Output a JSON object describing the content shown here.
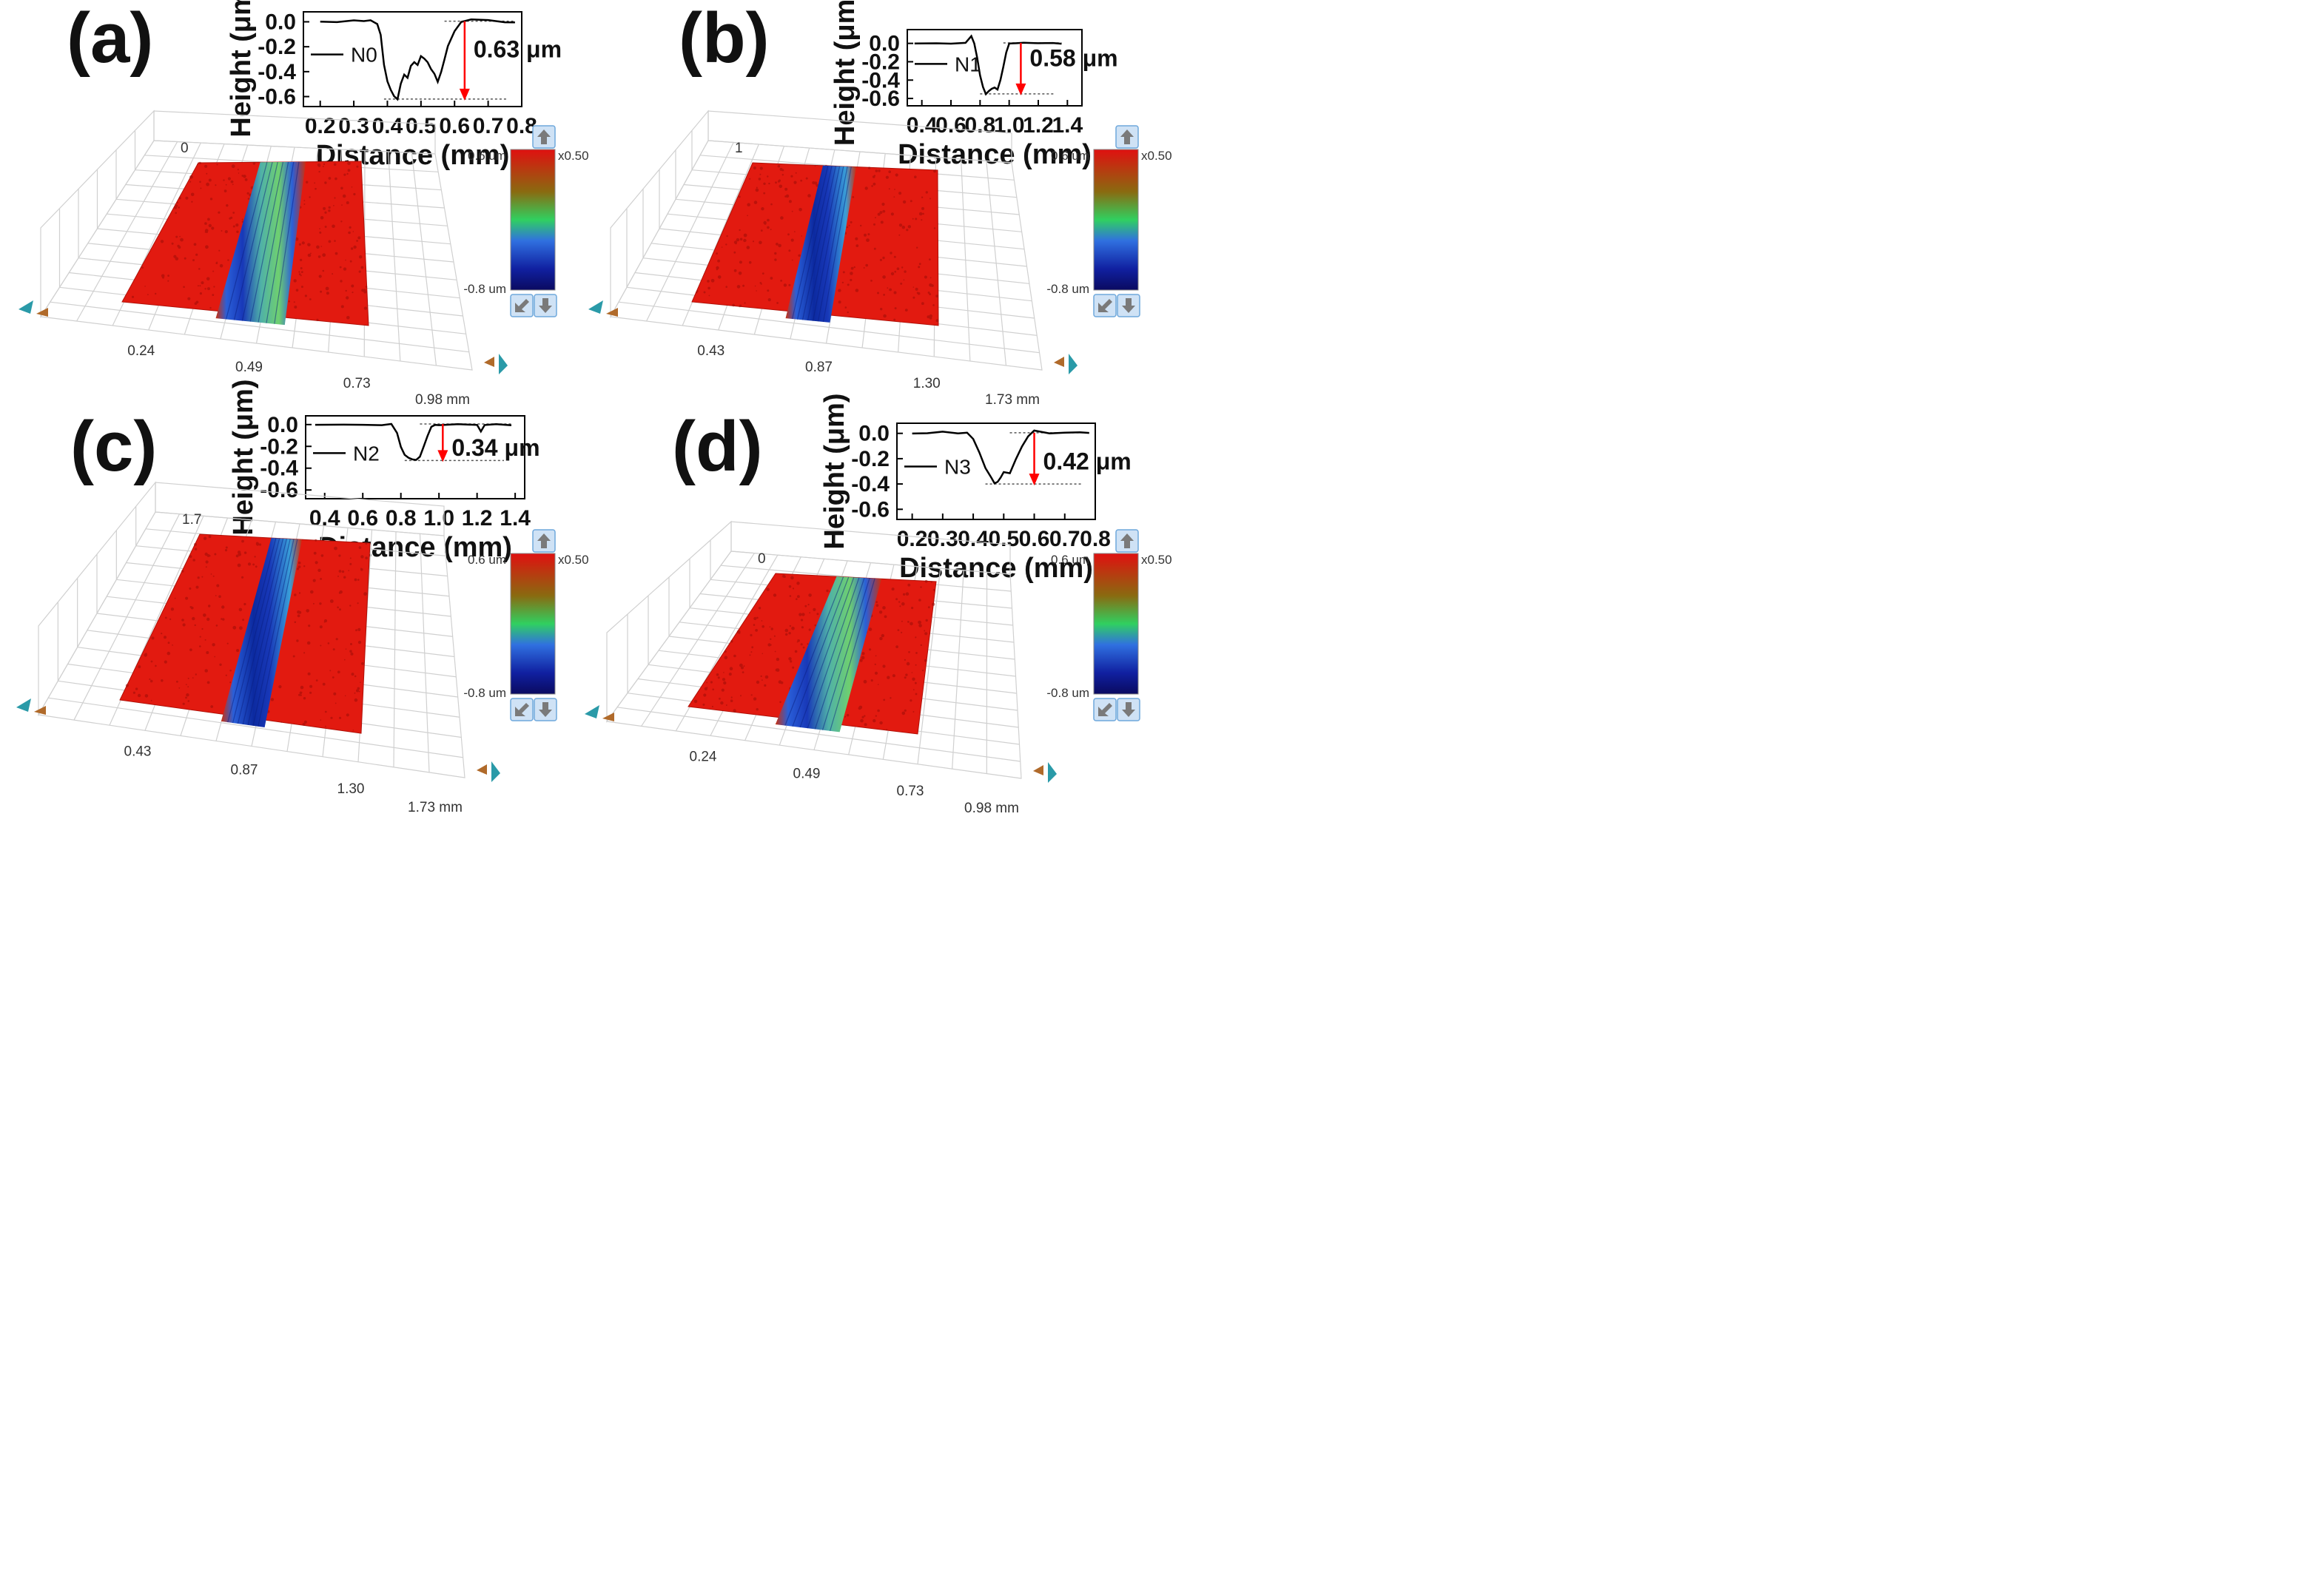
{
  "colors": {
    "trace": "#000000",
    "arrow": "#ff0000",
    "surface": "#e21a10",
    "groove": "#1a3fd0",
    "grid": "#d0d0d0",
    "button_bg": "#cfe2f5",
    "button_border": "#6fa8dc",
    "button_icon": "#7a7a7a"
  },
  "colorbar": {
    "top_label": "0.6 um",
    "bottom_label": "-0.8 um",
    "scale_label": "x0.50",
    "up_button_icon": "up-arrow-icon",
    "reset_button_icon": "reset-view-icon",
    "down_button_icon": "down-arrow-icon"
  },
  "chart_data": [
    {
      "panel": "(a)",
      "type": "line",
      "xlabel": "Distance (mm)",
      "ylabel": "Height (μm)",
      "xlim": [
        0.15,
        0.8
      ],
      "ylim": [
        -0.68,
        0.08
      ],
      "xticks": [
        "0.2",
        "0.3",
        "0.4",
        "0.5",
        "0.6",
        "0.7",
        "0.8"
      ],
      "yticks": [
        "0.0",
        "-0.2",
        "-0.4",
        "-0.6"
      ],
      "ytick_values": [
        0.0,
        -0.2,
        -0.4,
        -0.6
      ],
      "legend": "N0",
      "depth_label": "0.63 μm",
      "depth_at_x": 0.63,
      "series": [
        {
          "name": "N0",
          "x": [
            0.2,
            0.25,
            0.3,
            0.33,
            0.35,
            0.37,
            0.38,
            0.39,
            0.4,
            0.41,
            0.42,
            0.43,
            0.44,
            0.45,
            0.46,
            0.47,
            0.48,
            0.49,
            0.5,
            0.51,
            0.52,
            0.53,
            0.54,
            0.55,
            0.56,
            0.57,
            0.58,
            0.6,
            0.62,
            0.65,
            0.7,
            0.75,
            0.78
          ],
          "y": [
            0.0,
            0.0,
            0.01,
            0.0,
            0.01,
            -0.02,
            -0.1,
            -0.35,
            -0.48,
            -0.55,
            -0.6,
            -0.62,
            -0.5,
            -0.42,
            -0.45,
            -0.35,
            -0.32,
            -0.35,
            -0.28,
            -0.3,
            -0.32,
            -0.38,
            -0.42,
            -0.48,
            -0.4,
            -0.3,
            -0.2,
            -0.08,
            0.0,
            0.02,
            0.01,
            0.0,
            0.0
          ]
        }
      ],
      "surface3d": {
        "x_ticks": [
          "0.24",
          "0.49",
          "0.73",
          "0.98 mm"
        ],
        "z_label": "0",
        "groove_style": "wide"
      }
    },
    {
      "panel": "(b)",
      "type": "line",
      "xlabel": "Distance (mm)",
      "ylabel": "Height (μm)",
      "xlim": [
        0.3,
        1.5
      ],
      "ylim": [
        -0.68,
        0.15
      ],
      "xticks": [
        "0.4",
        "0.6",
        "0.8",
        "1.0",
        "1.2",
        "1.4"
      ],
      "yticks": [
        "0.0",
        "-0.2",
        "-0.4",
        "-0.6"
      ],
      "ytick_values": [
        0.0,
        -0.2,
        -0.4,
        -0.6
      ],
      "legend": "N1",
      "depth_label": "0.58 μm",
      "depth_at_x": 1.08,
      "series": [
        {
          "name": "N1",
          "x": [
            0.35,
            0.5,
            0.6,
            0.7,
            0.74,
            0.76,
            0.78,
            0.8,
            0.82,
            0.84,
            0.86,
            0.88,
            0.9,
            0.92,
            0.94,
            0.96,
            0.98,
            1.0,
            1.05,
            1.1,
            1.2,
            1.3,
            1.36
          ],
          "y": [
            0.0,
            0.0,
            0.0,
            0.01,
            0.08,
            0.0,
            -0.15,
            -0.35,
            -0.48,
            -0.55,
            -0.52,
            -0.5,
            -0.48,
            -0.5,
            -0.4,
            -0.25,
            -0.1,
            0.0,
            0.0,
            0.01,
            0.0,
            0.0,
            0.0
          ]
        }
      ],
      "surface3d": {
        "x_ticks": [
          "0.43",
          "0.87",
          "1.30",
          "1.73 mm"
        ],
        "z_label": "1",
        "groove_style": "narrow"
      }
    },
    {
      "panel": "(c)",
      "type": "line",
      "xlabel": "Distance (mm)",
      "ylabel": "Height (μm)",
      "xlim": [
        0.3,
        1.45
      ],
      "ylim": [
        -0.68,
        0.08
      ],
      "xticks": [
        "0.4",
        "0.6",
        "0.8",
        "1.0",
        "1.2",
        "1.4"
      ],
      "yticks": [
        "0.0",
        "-0.2",
        "-0.4",
        "-0.6"
      ],
      "ytick_values": [
        0.0,
        -0.2,
        -0.4,
        -0.6
      ],
      "legend": "N2",
      "depth_label": "0.34 μm",
      "depth_at_x": 1.02,
      "series": [
        {
          "name": "N2",
          "x": [
            0.35,
            0.5,
            0.6,
            0.7,
            0.75,
            0.78,
            0.8,
            0.82,
            0.84,
            0.86,
            0.88,
            0.9,
            0.92,
            0.94,
            0.96,
            0.98,
            1.0,
            1.1,
            1.2,
            1.22,
            1.24,
            1.3,
            1.38
          ],
          "y": [
            0.0,
            0.0,
            0.0,
            0.0,
            0.0,
            -0.08,
            -0.2,
            -0.28,
            -0.3,
            -0.32,
            -0.33,
            -0.3,
            -0.2,
            -0.1,
            -0.02,
            0.0,
            0.0,
            0.0,
            0.0,
            -0.06,
            0.0,
            0.0,
            -0.01
          ]
        }
      ],
      "surface3d": {
        "x_ticks": [
          "0.43",
          "0.87",
          "1.30",
          "1.73 mm"
        ],
        "z_label": "1.7",
        "groove_style": "medium"
      }
    },
    {
      "panel": "(d)",
      "type": "line",
      "xlabel": "Distance (mm)",
      "ylabel": "Height (μm)",
      "xlim": [
        0.15,
        0.8
      ],
      "ylim": [
        -0.68,
        0.08
      ],
      "xticks": [
        "0.2",
        "0.3",
        "0.4",
        "0.5",
        "0.6",
        "0.7",
        "0.8"
      ],
      "yticks": [
        "0.0",
        "-0.2",
        "-0.4",
        "-0.6"
      ],
      "ytick_values": [
        0.0,
        -0.2,
        -0.4,
        -0.6
      ],
      "legend": "N3",
      "depth_label": "0.42 μm",
      "depth_at_x": 0.6,
      "series": [
        {
          "name": "N3",
          "x": [
            0.2,
            0.25,
            0.3,
            0.35,
            0.38,
            0.4,
            0.42,
            0.44,
            0.46,
            0.47,
            0.48,
            0.49,
            0.5,
            0.52,
            0.54,
            0.56,
            0.58,
            0.6,
            0.65,
            0.7,
            0.75,
            0.78
          ],
          "y": [
            0.0,
            0.0,
            0.01,
            0.0,
            0.0,
            -0.05,
            -0.15,
            -0.28,
            -0.35,
            -0.4,
            -0.38,
            -0.35,
            -0.3,
            -0.32,
            -0.2,
            -0.1,
            -0.02,
            0.02,
            0.0,
            0.0,
            0.01,
            0.0
          ]
        }
      ],
      "surface3d": {
        "x_ticks": [
          "0.24",
          "0.49",
          "0.73",
          "0.98 mm"
        ],
        "z_label": "0",
        "groove_style": "wide"
      }
    }
  ]
}
